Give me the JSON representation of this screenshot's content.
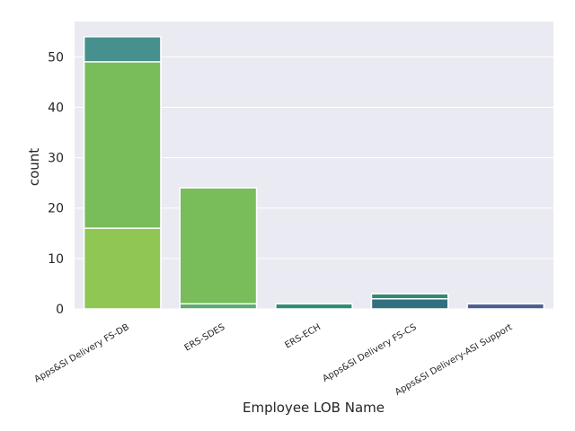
{
  "chart_data": {
    "type": "bar",
    "style": "overlaid (layered) count bars, seaborn darkgrid",
    "xlabel": "Employee LOB Name",
    "ylabel": "count",
    "ylim": [
      0,
      57
    ],
    "yticks": [
      0,
      10,
      20,
      30,
      40,
      50
    ],
    "grid": true,
    "categories": [
      "Apps&SI Delivery FS-DB",
      "ERS-SDES",
      "ERS-ECH",
      "Apps&SI Delivery FS-CS",
      "Apps&SI Delivery-ASI Support"
    ],
    "series": [
      {
        "color": "#46908e",
        "values": [
          54,
          0,
          0,
          0,
          0
        ]
      },
      {
        "color": "#79bc5a",
        "values": [
          49,
          24,
          0,
          0,
          0
        ]
      },
      {
        "color": "#8fc654",
        "values": [
          16,
          0,
          0,
          0,
          0
        ]
      },
      {
        "color": "#2e8b73",
        "values": [
          0,
          0,
          1,
          3,
          0
        ]
      },
      {
        "color": "#32707f",
        "values": [
          0,
          0,
          0,
          2,
          0
        ]
      },
      {
        "color": "#4b5c8e",
        "values": [
          0,
          0,
          0,
          0,
          1
        ]
      },
      {
        "color": "#5caa6e",
        "values": [
          0,
          1,
          0,
          0,
          0
        ]
      }
    ]
  },
  "colors": {
    "plot_background": "#eaeaf2",
    "grid": "#ffffff"
  }
}
